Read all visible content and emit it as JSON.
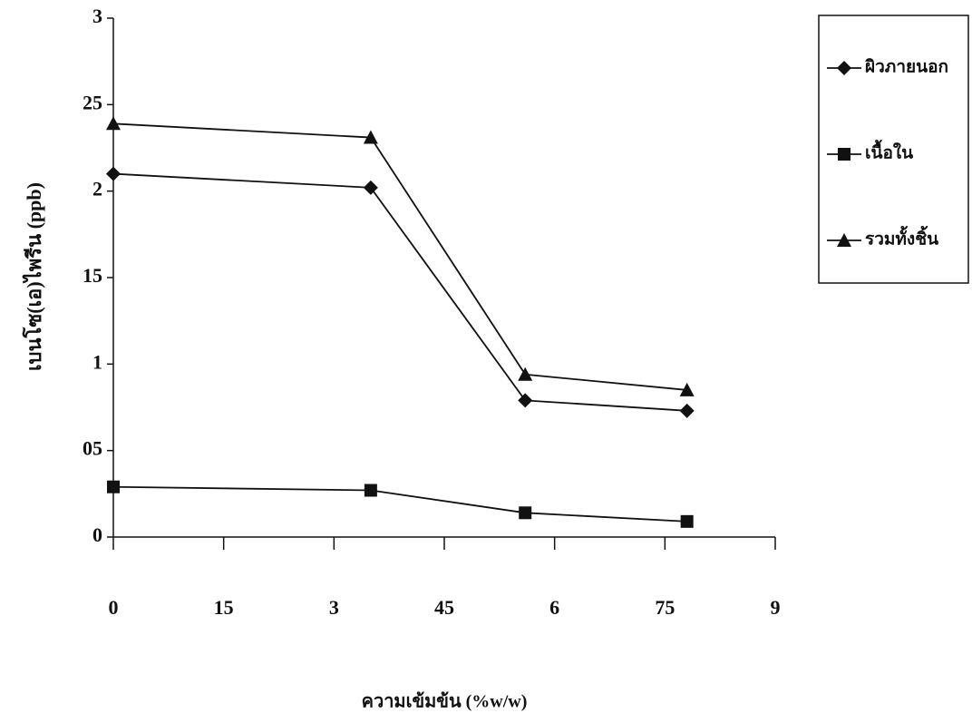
{
  "chart_data": {
    "type": "line",
    "x_label": "ความเข้มข้น (%w/w)",
    "y_label": "เบนโซ(เอ)ไพรีน (ppb)",
    "x": [
      0,
      3.5,
      5.6,
      7.8
    ],
    "series": [
      {
        "name": "ผิวภายนอก",
        "color": "#111111",
        "marker": "diamond",
        "values": [
          2.1,
          2.02,
          0.79,
          0.73
        ]
      },
      {
        "name": "เนื้อใน",
        "color": "#111111",
        "marker": "square",
        "values": [
          0.29,
          0.27,
          0.14,
          0.09
        ]
      },
      {
        "name": "รวมทั้งชิ้น",
        "color": "#111111",
        "marker": "triangle",
        "values": [
          2.39,
          2.31,
          0.94,
          0.85
        ]
      }
    ],
    "xlim": [
      0,
      9
    ],
    "xticks": [
      0,
      {
        "value": 1.5,
        "label": "15"
      },
      3,
      {
        "value": 4.5,
        "label": "45"
      },
      6,
      {
        "value": 7.5,
        "label": "75"
      },
      9
    ],
    "ylim": [
      0,
      3
    ],
    "yticks": [
      0,
      {
        "value": 0.5,
        "label": "05"
      },
      1,
      {
        "value": 1.5,
        "label": "15"
      },
      2,
      {
        "value": 2.5,
        "label": "25"
      },
      3
    ],
    "grid": false,
    "legend": "right"
  }
}
